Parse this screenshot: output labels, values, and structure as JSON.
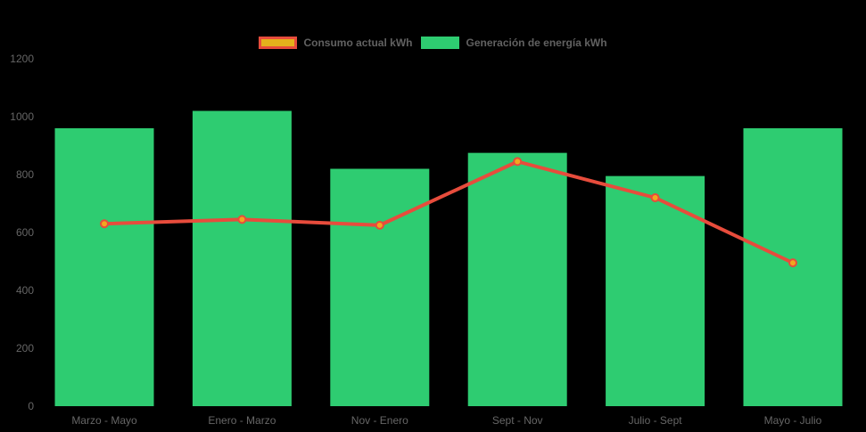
{
  "page": {
    "background_color": "#000000",
    "text_color": "#666666"
  },
  "legend": {
    "position": "top",
    "items": [
      {
        "label": "Consumo actual kWh",
        "swatch_fill": "#e4b11c",
        "swatch_border": "#e74c3c",
        "series_type": "line"
      },
      {
        "label": "Generación de energía kWh",
        "swatch_fill": "#2ecc71",
        "swatch_border": "#2ecc71",
        "series_type": "bar"
      }
    ]
  },
  "chart_data": {
    "type": "bar",
    "title": "",
    "xlabel": "",
    "ylabel": "",
    "categories": [
      "Marzo - Mayo",
      "Enero - Marzo",
      "Nov - Enero",
      "Sept - Nov",
      "Julio - Sept",
      "Mayo - Julio"
    ],
    "series": [
      {
        "name": "Generación de energía kWh",
        "type": "bar",
        "color": "#2ecc71",
        "values": [
          960,
          1020,
          820,
          875,
          795,
          960
        ]
      },
      {
        "name": "Consumo actual kWh",
        "type": "line",
        "line_color": "#e74c3c",
        "point_fill": "#f2a71f",
        "point_border": "#e74c3c",
        "values": [
          630,
          645,
          625,
          845,
          720,
          495
        ]
      }
    ],
    "ylim": [
      0,
      1200
    ],
    "yticks": [
      0,
      200,
      400,
      600,
      800,
      1000,
      1200
    ],
    "grid": false,
    "legend_position": "top",
    "background": "#000000",
    "axis_text_color": "#666666"
  }
}
